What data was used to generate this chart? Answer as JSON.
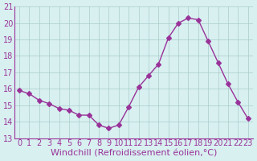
{
  "x": [
    0,
    1,
    2,
    3,
    4,
    5,
    6,
    7,
    8,
    9,
    10,
    11,
    12,
    13,
    14,
    15,
    16,
    17,
    18,
    19,
    20,
    21,
    22,
    23
  ],
  "y": [
    15.9,
    15.7,
    15.3,
    15.1,
    14.8,
    14.7,
    14.4,
    14.4,
    13.8,
    13.6,
    13.8,
    14.9,
    16.1,
    16.8,
    17.5,
    19.1,
    20.0,
    20.3,
    20.2,
    18.9,
    17.6,
    16.3,
    15.2,
    14.2
  ],
  "line_color": "#993399",
  "marker": "D",
  "marker_size": 3,
  "xlabel": "Windchill (Refroidissement éolien,°C)",
  "xlabel_fontsize": 8,
  "tick_fontsize": 7,
  "ylim": [
    13,
    21
  ],
  "xlim_min": -0.5,
  "xlim_max": 23.5,
  "yticks": [
    13,
    14,
    15,
    16,
    17,
    18,
    19,
    20,
    21
  ],
  "xticks": [
    0,
    1,
    2,
    3,
    4,
    5,
    6,
    7,
    8,
    9,
    10,
    11,
    12,
    13,
    14,
    15,
    16,
    17,
    18,
    19,
    20,
    21,
    22,
    23
  ],
  "bg_color": "#d8f0f0",
  "grid_color": "#aacccc",
  "grid_linewidth": 0.5
}
